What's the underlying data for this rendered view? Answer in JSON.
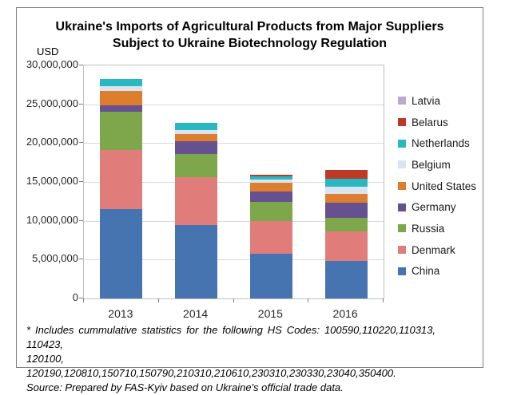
{
  "figure": {
    "title_line1": "Ukraine's Imports of Agricultural Products from Major Suppliers",
    "title_line2": "Subject to Ukraine Biotechnology Regulation"
  },
  "chart_data": {
    "type": "bar",
    "stacked": true,
    "title": "Ukraine's Imports of Agricultural Products from Major Suppliers Subject to Ukraine Biotechnology Regulation",
    "ylabel": "USD",
    "xlabel": "",
    "grid": true,
    "legend_position": "right",
    "categories": [
      "2013",
      "2014",
      "2015",
      "2016"
    ],
    "ylim": [
      0,
      30000000
    ],
    "y_tick_values": [
      30000000,
      25000000,
      20000000,
      15000000,
      10000000,
      5000000,
      0
    ],
    "y_ticks": [
      "30,000,000",
      "25,000,000",
      "20,000,000",
      "15,000,000",
      "10,000,000",
      "5,000,000",
      "0"
    ],
    "stack_order_note": "series listed bottom-to-top; legend shown top-to-bottom reversed",
    "series": [
      {
        "name": "China",
        "color": "#4674B1",
        "values": [
          11500000,
          9500000,
          5800000,
          4800000
        ]
      },
      {
        "name": "Denmark",
        "color": "#E07D7A",
        "values": [
          7600000,
          6100000,
          4200000,
          3800000
        ]
      },
      {
        "name": "Russia",
        "color": "#7EA64B",
        "values": [
          4900000,
          3000000,
          2400000,
          1800000
        ]
      },
      {
        "name": "Germany",
        "color": "#66508F",
        "values": [
          900000,
          1600000,
          1400000,
          1900000
        ]
      },
      {
        "name": "United States",
        "color": "#DD7E2F",
        "values": [
          1800000,
          1000000,
          1100000,
          1200000
        ]
      },
      {
        "name": "Belgium",
        "color": "#D9E4F0",
        "values": [
          600000,
          500000,
          400000,
          900000
        ]
      },
      {
        "name": "Netherlands",
        "color": "#29B8C2",
        "values": [
          1000000,
          900000,
          400000,
          1000000
        ]
      },
      {
        "name": "Belarus",
        "color": "#BC3A26",
        "values": [
          0,
          0,
          200000,
          1100000
        ]
      },
      {
        "name": "Latvia",
        "color": "#BCA9CE",
        "values": [
          0,
          0,
          0,
          0
        ]
      }
    ]
  },
  "footnote": {
    "line1": "* Includes cummulative statistics for the following HS Codes: 100590,110220,110313, 110423,",
    "line2": "120100, 120190,120810,150710,150790,210310,210610,230310,230330,23040,350400.",
    "source": "Source: Prepared by FAS-Kyiv based on Ukraine's official trade data."
  }
}
